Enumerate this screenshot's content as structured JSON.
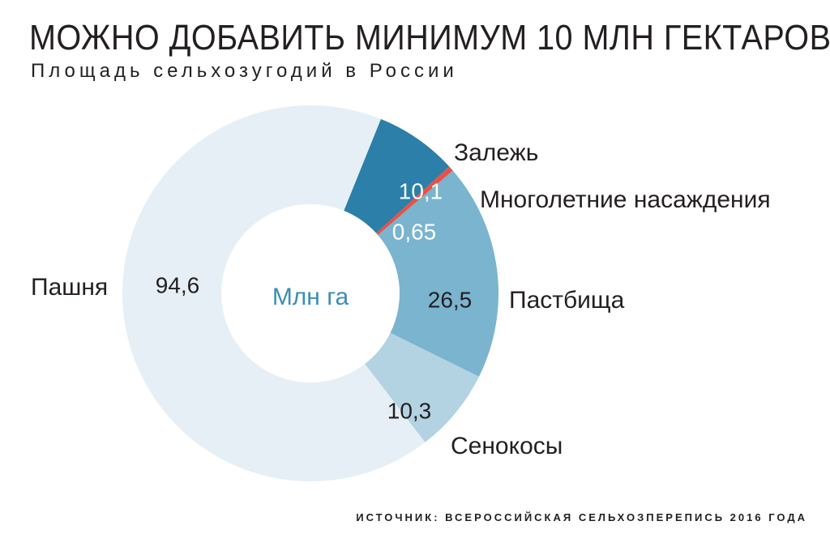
{
  "header": {
    "title": "МОЖНО ДОБАВИТЬ МИНИМУМ 10 МЛН ГЕКТАРОВ",
    "subtitle": "Площадь сельхозугодий в России"
  },
  "footer": {
    "source": "ИСТОЧНИК: ВСЕРОССИЙСКАЯ СЕЛЬХОЗПЕРЕПИСЬ 2016 ГОДА"
  },
  "chart_data": {
    "type": "pie",
    "donut": true,
    "center_label": "Млн га",
    "start": "Залежь begins at about the 12 o'clock position and segments proceed clockwise",
    "slices": [
      {
        "name": "Залежь",
        "value": 10.1,
        "value_label": "10,1",
        "color": "#2b7fa8",
        "value_text_color": "#ffffff"
      },
      {
        "name": "Многолетние насаждения",
        "value": 0.65,
        "value_label": "0,65",
        "color": "#e8514a",
        "value_text_color": "#ffffff"
      },
      {
        "name": "Пастбища",
        "value": 26.5,
        "value_label": "26,5",
        "color": "#7ab4cf",
        "value_text_color": "#231f20"
      },
      {
        "name": "Сенокосы",
        "value": 10.3,
        "value_label": "10,3",
        "color": "#b3d3e2",
        "value_text_color": "#231f20"
      },
      {
        "name": "Пашня",
        "value": 94.6,
        "value_label": "94,6",
        "color": "#e6eff5",
        "value_text_color": "#231f20"
      }
    ],
    "center_label_color": "#3a8db7"
  }
}
